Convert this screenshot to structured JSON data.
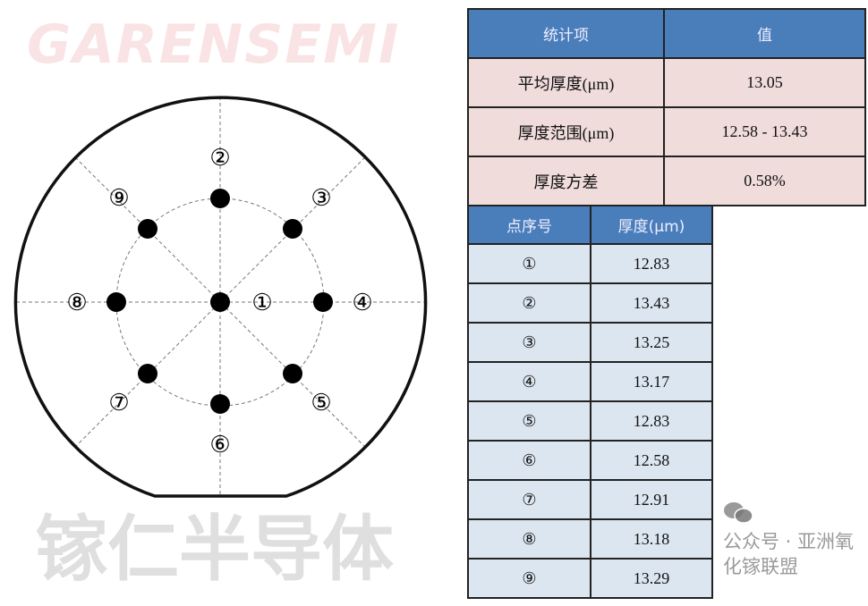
{
  "stats_table": {
    "headers": [
      "统计项",
      "值"
    ],
    "rows": [
      {
        "label": "平均厚度(μm)",
        "value": "13.05"
      },
      {
        "label": "厚度范围(μm)",
        "value": "12.58 - 13.43"
      },
      {
        "label": "厚度方差",
        "value": "0.58%"
      }
    ]
  },
  "points_table": {
    "headers": [
      "点序号",
      "厚度(μm)"
    ],
    "rows": [
      {
        "point": "①",
        "thickness": "12.83"
      },
      {
        "point": "②",
        "thickness": "13.43"
      },
      {
        "point": "③",
        "thickness": "13.25"
      },
      {
        "point": "④",
        "thickness": "13.17"
      },
      {
        "point": "⑤",
        "thickness": "12.83"
      },
      {
        "point": "⑥",
        "thickness": "12.58"
      },
      {
        "point": "⑦",
        "thickness": "12.91"
      },
      {
        "point": "⑧",
        "thickness": "13.18"
      },
      {
        "point": "⑨",
        "thickness": "13.29"
      }
    ]
  },
  "wafer_labels": [
    "①",
    "②",
    "③",
    "④",
    "⑤",
    "⑥",
    "⑦",
    "⑧",
    "⑨"
  ],
  "watermark": {
    "en": "GARENSEMI",
    "cn": "镓仁半导体"
  },
  "footer": {
    "icon": "wechat-icon",
    "text": "公众号 · 亚洲氧化镓联盟"
  },
  "colors": {
    "header": "#4a7ebb",
    "stats_row": "#f1dcdc",
    "points_row": "#dce6f1"
  }
}
